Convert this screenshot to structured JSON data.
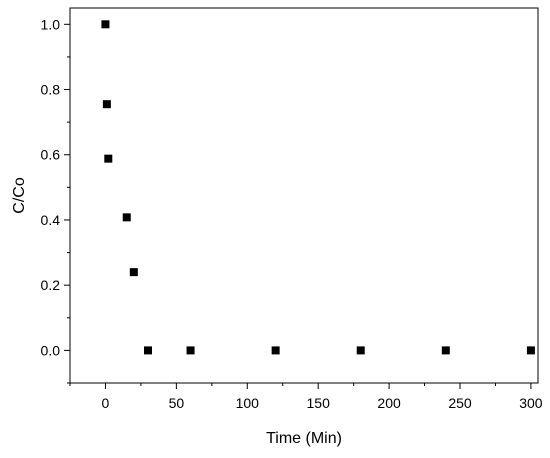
{
  "chart_data": {
    "type": "scatter",
    "title": "",
    "xlabel": "Time (Min)",
    "ylabel": "C/Co",
    "xlim": [
      -25,
      305
    ],
    "ylim": [
      -0.1,
      1.05
    ],
    "xticks": [
      0,
      50,
      100,
      150,
      200,
      250,
      300
    ],
    "xtick_labels": [
      "0",
      "50",
      "100",
      "150",
      "200",
      "250",
      "300"
    ],
    "yticks": [
      0.0,
      0.2,
      0.4,
      0.6,
      0.8,
      1.0
    ],
    "ytick_labels": [
      "0.0",
      "0.2",
      "0.4",
      "0.6",
      "0.8",
      "1.0"
    ],
    "grid": false,
    "legend": "none",
    "marker": "square",
    "marker_color": "#000000",
    "series": [
      {
        "x": [
          0,
          1,
          2,
          15,
          20,
          30,
          60,
          120,
          180,
          240,
          300
        ],
        "y": [
          1.0,
          0.755,
          0.588,
          0.408,
          0.24,
          0.0,
          0.0,
          0.0,
          0.0,
          0.0,
          0.0
        ]
      }
    ]
  }
}
